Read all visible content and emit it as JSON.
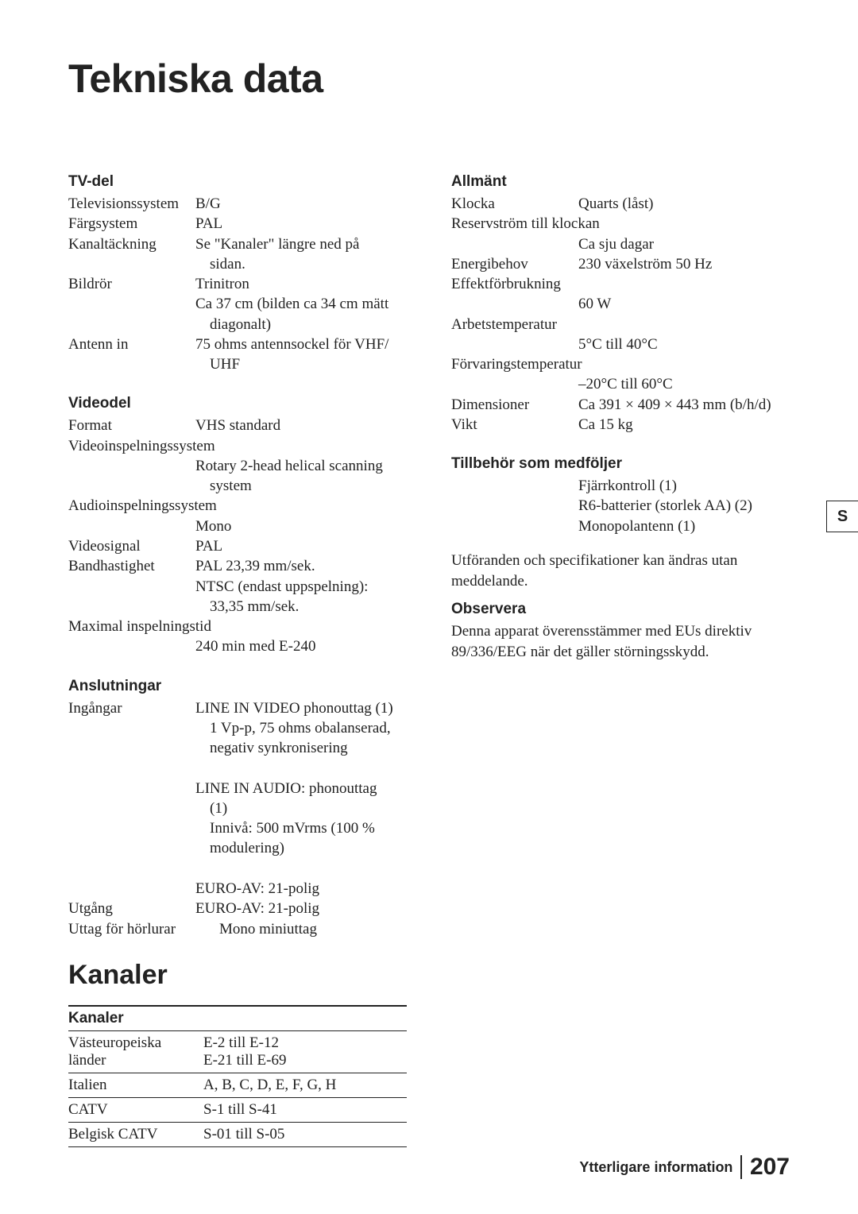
{
  "title": "Tekniska data",
  "side_tab": "S",
  "left": {
    "tv": {
      "heading": "TV-del",
      "rows": [
        {
          "label": "Televisionssystem",
          "values": [
            "B/G"
          ]
        },
        {
          "label": "Färgsystem",
          "values": [
            "PAL"
          ]
        },
        {
          "label": "Kanaltäckning",
          "values": [
            "Se \"Kanaler\" längre ned på"
          ],
          "indents": [
            "sidan."
          ]
        },
        {
          "label": "Bildrör",
          "values": [
            "Trinitron",
            "Ca 37 cm (bilden ca 34 cm mätt"
          ],
          "indents": [
            "diagonalt)"
          ]
        },
        {
          "label": "Antenn in",
          "values": [
            "75 ohms antennsockel för VHF/"
          ],
          "indents": [
            "UHF"
          ]
        }
      ]
    },
    "video": {
      "heading": "Videodel",
      "rows": [
        {
          "label": "Format",
          "values": [
            "VHS standard"
          ]
        },
        {
          "label": "Videoinspelningssystem",
          "full": true,
          "values": [
            "Rotary 2-head helical scanning"
          ],
          "indents": [
            "system"
          ]
        },
        {
          "label": "Audioinspelningssystem",
          "full": true,
          "values": [
            "Mono"
          ]
        },
        {
          "label": "Videosignal",
          "values": [
            "PAL"
          ]
        },
        {
          "label": "Bandhastighet",
          "values": [
            "PAL 23,39 mm/sek.",
            "NTSC (endast uppspelning):"
          ],
          "indents": [
            "33,35 mm/sek."
          ]
        },
        {
          "label": "Maximal inspelningstid",
          "full": true,
          "values": [
            "240 min med E-240"
          ]
        }
      ]
    },
    "conn": {
      "heading": "Anslutningar",
      "rows": [
        {
          "label": "Ingångar",
          "values": [
            "LINE IN VIDEO phonouttag (1)"
          ],
          "indents": [
            "1 Vp-p, 75 ohms obalanserad,",
            "negativ synkronisering"
          ],
          "more": [
            "LINE IN AUDIO: phonouttag"
          ],
          "more_indents": [
            "(1)",
            "Innivå: 500 mVrms (100 %",
            "modulering)"
          ],
          "tail": [
            "EURO-AV: 21-polig"
          ]
        },
        {
          "label": "Utgång",
          "values": [
            "EURO-AV: 21-polig"
          ]
        },
        {
          "label": "Uttag för hörlurar",
          "label_wide": true,
          "values": [
            "Mono miniuttag"
          ]
        }
      ]
    },
    "channels": {
      "subtitle": "Kanaler",
      "table_heading": "Kanaler",
      "rows": [
        {
          "c1": [
            "Västeuropeiska",
            "länder"
          ],
          "c2": [
            "E-2 till E-12",
            "E-21 till E-69"
          ]
        },
        {
          "c1": [
            "Italien"
          ],
          "c2": [
            "A, B, C, D, E, F, G, H"
          ]
        },
        {
          "c1": [
            "CATV"
          ],
          "c2": [
            "S-1 till S-41"
          ]
        },
        {
          "c1": [
            "Belgisk CATV"
          ],
          "c2": [
            "S-01 till S-05"
          ]
        }
      ]
    }
  },
  "right": {
    "general": {
      "heading": "Allmänt",
      "rows": [
        {
          "label": "Klocka",
          "values": [
            "Quarts (låst)"
          ]
        },
        {
          "label": "Reservström till klockan",
          "full": true,
          "values": [
            "Ca sju dagar"
          ]
        },
        {
          "label": "Energibehov",
          "values": [
            "230 växelström 50 Hz"
          ]
        },
        {
          "label": "Effektförbrukning",
          "full": true,
          "values": [
            "60 W"
          ]
        },
        {
          "label": "Arbetstemperatur",
          "full": true,
          "values": [
            "5°C till 40°C"
          ]
        },
        {
          "label": "Förvaringstemperatur",
          "full": true,
          "values": [
            "–20°C till 60°C"
          ]
        },
        {
          "label": "Dimensioner",
          "values": [
            "Ca 391 × 409 × 443 mm  (b/h/d)"
          ]
        },
        {
          "label": "Vikt",
          "values": [
            "Ca 15 kg"
          ]
        }
      ]
    },
    "accessories": {
      "heading": "Tillbehör som medföljer",
      "items": [
        "Fjärrkontroll (1)",
        "R6-batterier (storlek AA) (2)",
        "Monopolantenn (1)"
      ]
    },
    "disclaimer": "Utföranden och specifikationer kan ändras utan meddelande.",
    "observe": {
      "heading": "Observera",
      "text": "Denna apparat överensstämmer med EUs direktiv 89/336/EEG när det gäller störningsskydd."
    }
  },
  "footer": {
    "text": "Ytterligare information",
    "page": "207"
  }
}
